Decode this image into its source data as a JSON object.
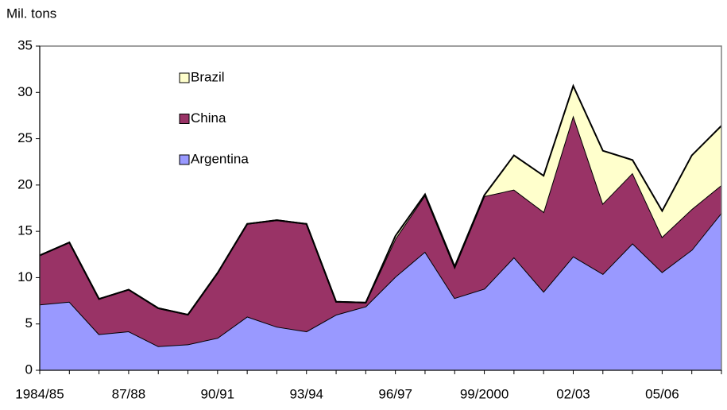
{
  "chart_data": {
    "type": "stacked-area",
    "y_label": "Mil. tons",
    "categories": [
      "1984/85",
      null,
      null,
      "87/88",
      null,
      null,
      "90/91",
      null,
      null,
      "93/94",
      null,
      null,
      "96/97",
      null,
      null,
      "99/2000",
      null,
      null,
      "02/03",
      null,
      null,
      "05/06",
      null,
      null
    ],
    "series": [
      {
        "name": "Argentina",
        "color": "#9999ff",
        "values": [
          7.1,
          7.4,
          3.9,
          4.2,
          2.6,
          2.8,
          3.5,
          5.8,
          4.7,
          4.2,
          6.0,
          6.9,
          10.1,
          12.8,
          7.8,
          8.8,
          12.2,
          8.5,
          12.3,
          10.4,
          13.7,
          10.6,
          13.0,
          17.0
        ]
      },
      {
        "name": "China",
        "color": "#993366",
        "values": [
          5.3,
          6.4,
          3.8,
          4.5,
          4.1,
          3.2,
          7.0,
          10.0,
          11.5,
          11.6,
          1.4,
          0.4,
          4.1,
          6.1,
          3.3,
          10.0,
          7.3,
          8.6,
          15.2,
          7.6,
          7.6,
          3.8,
          4.4,
          3.0
        ]
      },
      {
        "name": "Brazil",
        "color": "#ffffcc",
        "values": [
          0,
          0,
          0,
          0,
          0,
          0,
          0,
          0,
          0,
          0,
          0,
          0,
          0.3,
          0.1,
          0.1,
          0.1,
          3.7,
          3.9,
          3.2,
          5.7,
          1.4,
          2.8,
          5.8,
          6.4
        ]
      }
    ],
    "ylim": [
      0,
      35
    ],
    "yticks": [
      0,
      5,
      10,
      15,
      20,
      25,
      30,
      35
    ]
  }
}
